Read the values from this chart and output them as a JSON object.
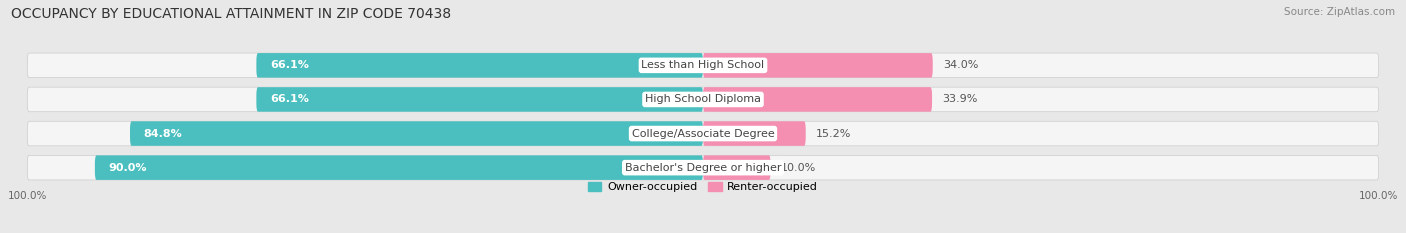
{
  "title": "OCCUPANCY BY EDUCATIONAL ATTAINMENT IN ZIP CODE 70438",
  "source": "Source: ZipAtlas.com",
  "categories": [
    "Less than High School",
    "High School Diploma",
    "College/Associate Degree",
    "Bachelor's Degree or higher"
  ],
  "owner_values": [
    66.1,
    66.1,
    84.8,
    90.0
  ],
  "renter_values": [
    34.0,
    33.9,
    15.2,
    10.0
  ],
  "owner_color": "#4BBFBF",
  "renter_color": "#F48FB1",
  "background_color": "#e8e8e8",
  "bar_bg_color": "#f5f5f5",
  "title_fontsize": 10,
  "source_fontsize": 7.5,
  "value_fontsize": 8,
  "cat_fontsize": 8,
  "legend_fontsize": 8,
  "axis_tick_fontsize": 7.5
}
